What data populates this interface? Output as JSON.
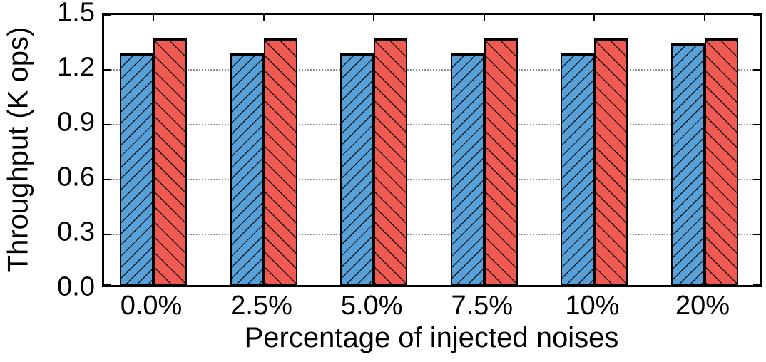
{
  "chart_data": {
    "type": "bar",
    "title": "",
    "xlabel": "Percentage of injected noises",
    "ylabel": "Throughput (K ops)",
    "categories": [
      "0.0%",
      "2.5%",
      "5.0%",
      "7.5%",
      "10%",
      "20%"
    ],
    "series": [
      {
        "name": "blue",
        "color": "#58a0d8",
        "hatch": "/",
        "values": [
          1.27,
          1.27,
          1.27,
          1.27,
          1.27,
          1.32
        ]
      },
      {
        "name": "red",
        "color": "#ef5a52",
        "hatch": "\\",
        "values": [
          1.35,
          1.35,
          1.35,
          1.35,
          1.35,
          1.35
        ]
      }
    ],
    "ylim": [
      0,
      1.5
    ],
    "yticks": [
      {
        "value": 0.0,
        "label": "0.0"
      },
      {
        "value": 0.3,
        "label": "0.3"
      },
      {
        "value": 0.6,
        "label": "0.6"
      },
      {
        "value": 0.9,
        "label": "0.9"
      },
      {
        "value": 1.2,
        "label": "1.2"
      },
      {
        "value": 1.5,
        "label": "1.5"
      }
    ],
    "grid": "horizontal-dotted",
    "legend": "none",
    "colors": {
      "bar_blue": "#58a0d8",
      "bar_red": "#ef5a52",
      "bar_border": "#000000",
      "gridline": "#909090",
      "axis": "#000000",
      "background": "#ffffff"
    }
  }
}
